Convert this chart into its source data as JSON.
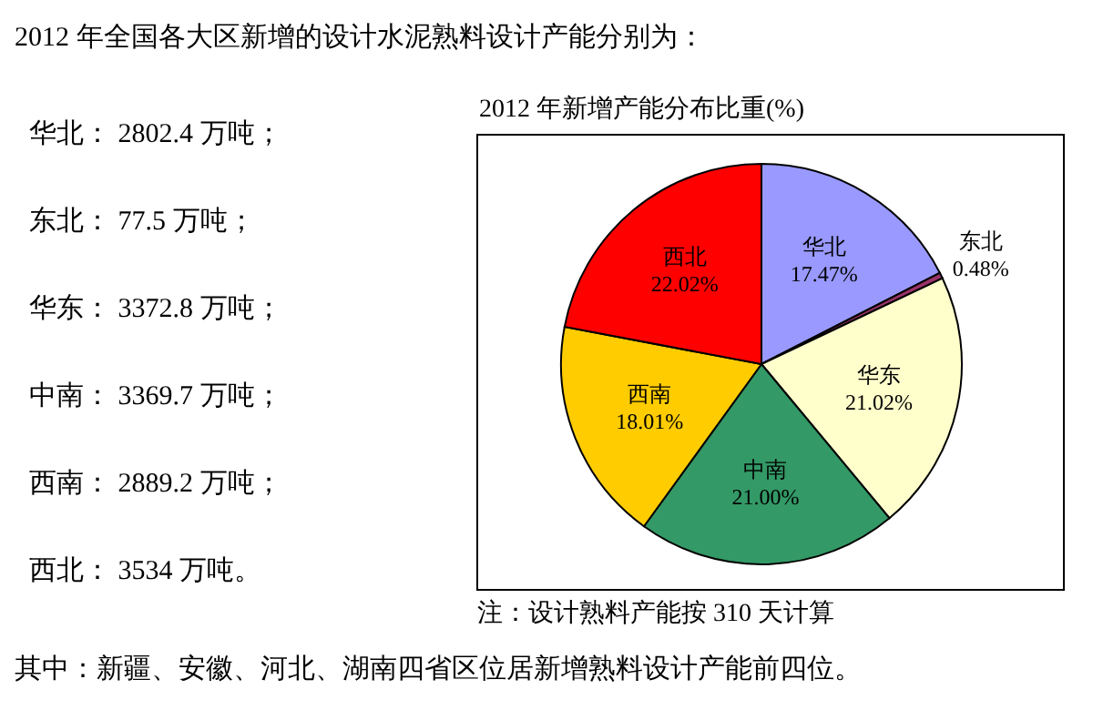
{
  "chart_data": {
    "type": "pie",
    "title": "2012 年全国各大区新增的设计水泥熟料设计产能分别为：",
    "subtitle": "2012 年新增产能分布比重(%)",
    "categories": [
      "华北",
      "东北",
      "华东",
      "中南",
      "西南",
      "西北"
    ],
    "values": [
      17.47,
      0.48,
      21.02,
      21.0,
      18.01,
      22.02
    ],
    "colors": [
      "#9999ff",
      "#993366",
      "#ffffcc",
      "#339966",
      "#ffcc00",
      "#ff0000"
    ],
    "value_labels": [
      "17.47%",
      "0.48%",
      "21.02%",
      "21.00%",
      "18.01%",
      "22.02%"
    ],
    "annotations": [
      "华北： 2802.4 万吨；",
      "东北： 77.5 万吨；",
      "华东： 3372.8 万吨；",
      "中南： 3369.7 万吨；",
      "西南： 2889.2 万吨；",
      "西北： 3534 万吨。",
      "注：设计熟料产能按 310 天计算",
      "其中：新疆、安徽、河北、湖南四省区位居新增熟料设计产能前四位。"
    ]
  }
}
